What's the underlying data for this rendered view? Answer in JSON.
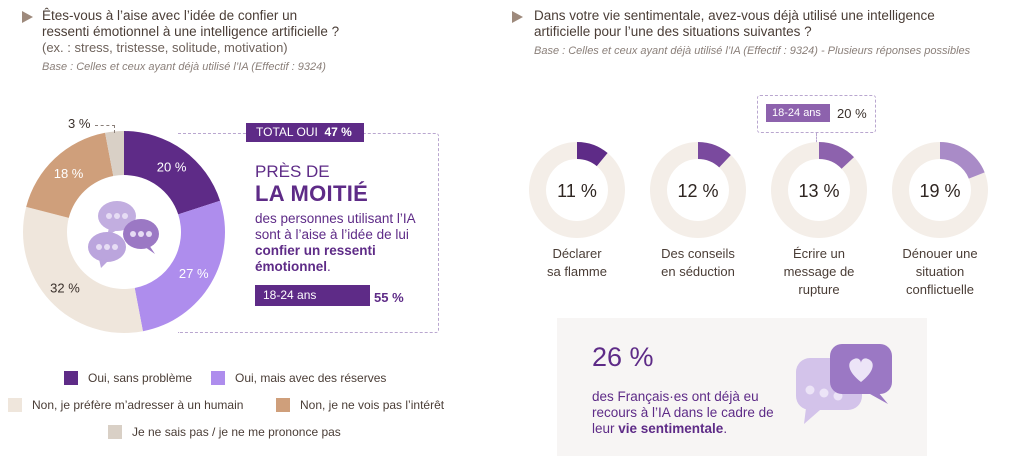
{
  "left_panel": {
    "question_line1": "Êtes-vous à l’aise avec l’idée de confier un",
    "question_line2": "ressenti émotionnel à une intelligence artificielle ?",
    "question_sub": "(ex. : stress, tristesse, solitude, motivation)",
    "base": "Base : Celles et ceux ayant déjà utilisé l’IA (Effectif : 9324)",
    "total_badge_label": "TOTAL OUI",
    "total_badge_value": "47 %",
    "headline_line1": "PRÈS DE",
    "headline_line2": "LA MOITIÉ",
    "desc_part1": "des personnes utilisant l’IA sont à l’aise à l’idée de lui ",
    "desc_bold": "confier un ressenti émotionnel",
    "desc_end": ".",
    "age_label": "18-24 ans",
    "age_value": "55 %",
    "age_value_number": 55,
    "icon": "chat-bubbles-icon"
  },
  "right_panel": {
    "question_line1": "Dans votre vie sentimentale, avez-vous déjà utilisé une intelligence",
    "question_line2": "artificielle pour l’une des situations suivantes  ?",
    "base": "Base : Celles et ceux ayant déjà utilisé l’IA (Effectif : 9324) - Plusieurs réponses possibles",
    "age_callout_label": "18-24 ans",
    "age_callout_value": "20 %",
    "stat_value": "26 %",
    "stat_desc_part1": "des Français·es ont déjà eu recours à l’IA dans le cadre de leur ",
    "stat_desc_bold": "vie sentimentale",
    "stat_desc_end": ".",
    "icon": "heart-chat-icon"
  },
  "chart_data": [
    {
      "type": "pie",
      "title": "Êtes-vous à l’aise avec l’idée de confier un ressenti émotionnel à une intelligence artificielle ?",
      "slices": [
        {
          "name": "Oui, sans problème",
          "value": 20,
          "label": "20 %",
          "color": "#5e2b87",
          "label_color": "#ffffff"
        },
        {
          "name": "Oui, mais avec des réserves",
          "value": 27,
          "label": "27 %",
          "color": "#ae8ded",
          "label_color": "#ffffff"
        },
        {
          "name": "Non, je préfère m’adresser à un humain",
          "value": 32,
          "label": "32 %",
          "color": "#efe6dc",
          "label_color": "#3a302b"
        },
        {
          "name": "Non, je ne vois pas l’intérêt",
          "value": 18,
          "label": "18 %",
          "color": "#cf9f7b",
          "label_color": "#ffffff"
        },
        {
          "name": "Je ne sais pas / je ne me prononce pas",
          "value": 3,
          "label": "3 %",
          "color": "#d9d0c6",
          "label_color": "#3a302b"
        }
      ],
      "legend_placement": "bottom"
    },
    {
      "type": "pie",
      "title": "Dans votre vie sentimentale, avez-vous déjà utilisé une intelligence artificielle pour l’une des situations suivantes ?",
      "rings": [
        {
          "name": "Déclarer sa flamme",
          "lines": [
            "Déclarer",
            "sa flamme"
          ],
          "value": 11,
          "label": "11 %",
          "color": "#5e2b87"
        },
        {
          "name": "Des conseils en séduction",
          "lines": [
            "Des conseils",
            "en séduction"
          ],
          "value": 12,
          "label": "12 %",
          "color": "#7a4a9e"
        },
        {
          "name": "Écrire un message de rupture",
          "lines": [
            "Écrire un",
            "message de",
            "rupture"
          ],
          "value": 13,
          "label": "13 %",
          "color": "#8d62ad"
        },
        {
          "name": "Dénouer une situation conflictuelle",
          "lines": [
            "Dénouer une",
            "situation",
            "conflictuelle"
          ],
          "value": 19,
          "label": "19 %",
          "color": "#a98bc7"
        }
      ],
      "track_color": "#f4eee8"
    }
  ]
}
